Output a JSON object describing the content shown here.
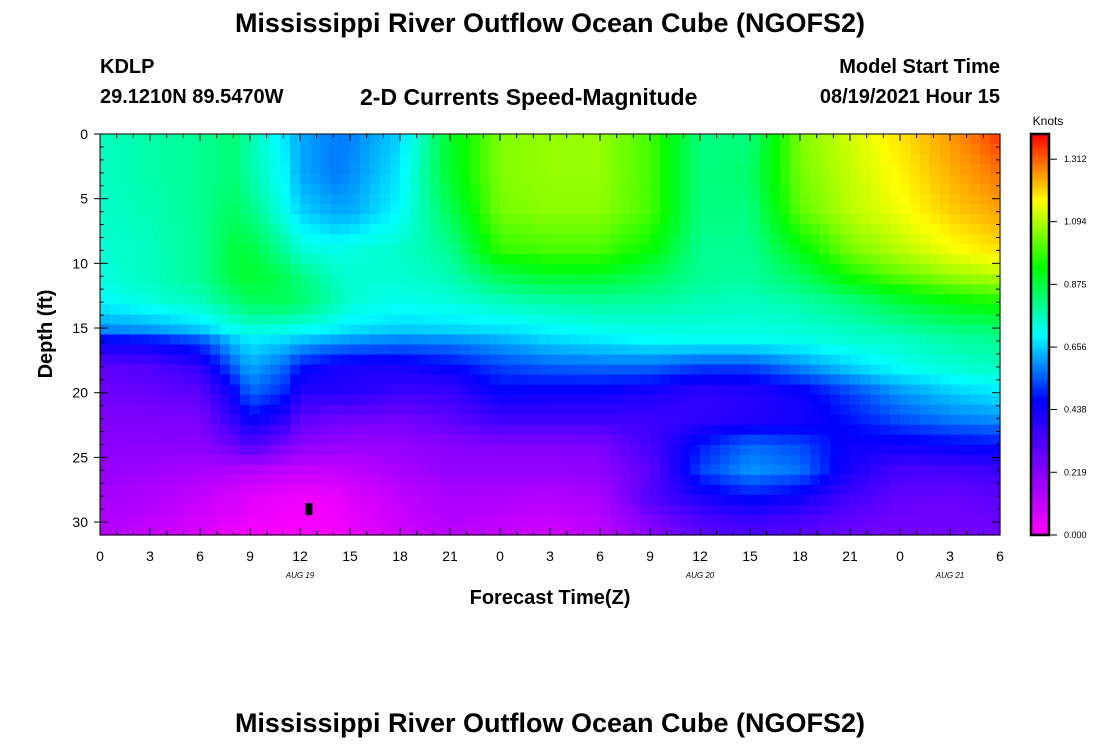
{
  "header": {
    "title": "Mississippi River Outflow Ocean Cube (NGOFS2)",
    "station": "KDLP",
    "coordinates": "29.1210N  89.5470W",
    "subtitle": "2-D Currents Speed-Magnitude",
    "model_start_label": "Model Start Time",
    "model_start_value": "08/19/2021 Hour 15"
  },
  "footer": {
    "title": "Mississippi River Outflow Ocean Cube (NGOFS2)"
  },
  "chart_data": {
    "type": "heatmap",
    "xlabel": "Forecast Time(Z)",
    "ylabel": "Depth (ft)",
    "x_ticks": [
      "0",
      "3",
      "6",
      "9",
      "12",
      "15",
      "18",
      "21",
      "0",
      "3",
      "6",
      "9",
      "12",
      "15",
      "18",
      "21",
      "0",
      "3",
      "6"
    ],
    "date_labels": [
      {
        "label": "AUG 19",
        "at_tick": 4
      },
      {
        "label": "AUG 20",
        "at_tick": 12
      },
      {
        "label": "AUG 21",
        "at_tick": 17
      }
    ],
    "y_ticks": [
      "0",
      "5",
      "10",
      "15",
      "20",
      "25",
      "30"
    ],
    "ylim": [
      0,
      31
    ],
    "xlim_hours": [
      0,
      54
    ],
    "y_reversed": true,
    "colorbar": {
      "title": "Knots",
      "ticks": [
        "1.312",
        "1.094",
        "0.875",
        "0.656",
        "0.438",
        "0.219",
        "0.000"
      ],
      "range": [
        0.0,
        1.4
      ]
    },
    "field": {
      "columns_hours": [
        0,
        3,
        6,
        8,
        9,
        11,
        12,
        14,
        15,
        18,
        21,
        24,
        27,
        30,
        33,
        36,
        39,
        42,
        45,
        48,
        51,
        54
      ],
      "rows_depth_ft": [
        0,
        3,
        6,
        9,
        11,
        13,
        15,
        16,
        18,
        20,
        22,
        24,
        26,
        28,
        30,
        31
      ],
      "values_knots": [
        [
          0.76,
          0.78,
          0.8,
          0.83,
          0.78,
          0.68,
          0.62,
          0.58,
          0.58,
          0.66,
          0.9,
          1.05,
          1.07,
          1.07,
          1.0,
          0.82,
          0.82,
          1.05,
          1.12,
          1.19,
          1.26,
          1.35
        ],
        [
          0.76,
          0.78,
          0.8,
          0.83,
          0.78,
          0.7,
          0.62,
          0.58,
          0.59,
          0.68,
          0.9,
          1.05,
          1.07,
          1.07,
          1.0,
          0.82,
          0.84,
          1.04,
          1.11,
          1.17,
          1.24,
          1.3
        ],
        [
          0.75,
          0.77,
          0.8,
          0.85,
          0.82,
          0.72,
          0.66,
          0.62,
          0.62,
          0.7,
          0.86,
          1.04,
          1.06,
          1.06,
          1.0,
          0.82,
          0.82,
          1.02,
          1.1,
          1.15,
          1.21,
          1.25
        ],
        [
          0.74,
          0.76,
          0.8,
          0.88,
          0.88,
          0.8,
          0.74,
          0.72,
          0.73,
          0.75,
          0.8,
          0.98,
          1.0,
          1.0,
          0.94,
          0.8,
          0.8,
          0.92,
          1.04,
          1.1,
          1.15,
          1.19
        ],
        [
          0.73,
          0.76,
          0.8,
          0.88,
          0.9,
          0.86,
          0.82,
          0.76,
          0.74,
          0.74,
          0.77,
          0.86,
          0.9,
          0.9,
          0.86,
          0.8,
          0.79,
          0.85,
          0.95,
          1.02,
          1.07,
          1.1
        ],
        [
          0.7,
          0.73,
          0.76,
          0.82,
          0.85,
          0.86,
          0.84,
          0.78,
          0.74,
          0.72,
          0.73,
          0.76,
          0.78,
          0.79,
          0.79,
          0.77,
          0.76,
          0.78,
          0.82,
          0.88,
          0.93,
          0.96
        ],
        [
          0.6,
          0.62,
          0.66,
          0.72,
          0.74,
          0.73,
          0.72,
          0.7,
          0.68,
          0.66,
          0.67,
          0.68,
          0.7,
          0.72,
          0.73,
          0.73,
          0.73,
          0.74,
          0.76,
          0.79,
          0.82,
          0.84
        ],
        [
          0.45,
          0.47,
          0.53,
          0.64,
          0.68,
          0.66,
          0.64,
          0.61,
          0.6,
          0.58,
          0.59,
          0.62,
          0.66,
          0.68,
          0.7,
          0.71,
          0.71,
          0.72,
          0.74,
          0.75,
          0.78,
          0.8
        ],
        [
          0.3,
          0.32,
          0.38,
          0.55,
          0.62,
          0.56,
          0.48,
          0.43,
          0.42,
          0.42,
          0.46,
          0.52,
          0.55,
          0.56,
          0.56,
          0.52,
          0.52,
          0.59,
          0.66,
          0.71,
          0.74,
          0.76
        ],
        [
          0.27,
          0.28,
          0.3,
          0.45,
          0.56,
          0.5,
          0.4,
          0.4,
          0.4,
          0.36,
          0.36,
          0.46,
          0.44,
          0.44,
          0.42,
          0.38,
          0.4,
          0.44,
          0.52,
          0.6,
          0.65,
          0.68
        ],
        [
          0.24,
          0.24,
          0.25,
          0.38,
          0.46,
          0.4,
          0.3,
          0.28,
          0.27,
          0.26,
          0.3,
          0.36,
          0.36,
          0.36,
          0.36,
          0.38,
          0.4,
          0.42,
          0.48,
          0.54,
          0.58,
          0.6
        ],
        [
          0.22,
          0.22,
          0.22,
          0.28,
          0.34,
          0.26,
          0.22,
          0.2,
          0.19,
          0.2,
          0.23,
          0.24,
          0.24,
          0.25,
          0.34,
          0.48,
          0.56,
          0.53,
          0.44,
          0.44,
          0.46,
          0.48
        ],
        [
          0.2,
          0.18,
          0.16,
          0.15,
          0.14,
          0.12,
          0.11,
          0.11,
          0.12,
          0.16,
          0.2,
          0.2,
          0.2,
          0.21,
          0.3,
          0.52,
          0.6,
          0.57,
          0.42,
          0.34,
          0.34,
          0.36
        ],
        [
          0.17,
          0.15,
          0.11,
          0.08,
          0.06,
          0.04,
          0.03,
          0.04,
          0.06,
          0.12,
          0.16,
          0.15,
          0.14,
          0.16,
          0.32,
          0.42,
          0.48,
          0.44,
          0.35,
          0.29,
          0.28,
          0.3
        ],
        [
          0.15,
          0.12,
          0.08,
          0.05,
          0.03,
          0.02,
          0.01,
          0.02,
          0.04,
          0.1,
          0.14,
          0.12,
          0.1,
          0.13,
          0.24,
          0.32,
          0.36,
          0.33,
          0.29,
          0.26,
          0.26,
          0.28
        ],
        [
          0.14,
          0.11,
          0.07,
          0.04,
          0.02,
          0.01,
          0.01,
          0.02,
          0.04,
          0.09,
          0.13,
          0.11,
          0.09,
          0.12,
          0.22,
          0.3,
          0.33,
          0.31,
          0.28,
          0.26,
          0.26,
          0.27
        ]
      ]
    },
    "marker": {
      "hour": 12.5,
      "depth_ft": 29
    }
  }
}
